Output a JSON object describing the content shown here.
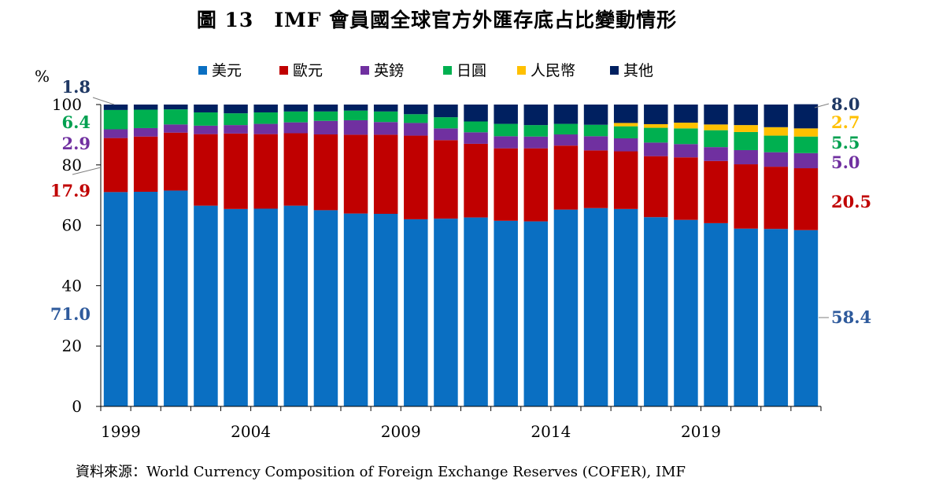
{
  "title": "圖 13　IMF 會員國全球官方外匯存底占比變動情形",
  "source": "資料來源：World Currency Composition of Foreign Exchange Reserves (COFER), IMF",
  "chart_data": {
    "type": "bar",
    "stacked": true,
    "title": "圖 13　IMF 會員國全球官方外匯存底占比變動情形",
    "ylabel": "%",
    "xlabel": "",
    "ylim": [
      0,
      100
    ],
    "yticks": [
      0,
      20,
      40,
      60,
      80,
      100
    ],
    "categories": [
      "1999",
      "2000",
      "2001",
      "2002",
      "2003",
      "2004",
      "2005",
      "2006",
      "2007",
      "2008",
      "2009",
      "2010",
      "2011",
      "2012",
      "2013",
      "2014",
      "2015",
      "2016",
      "2017",
      "2018",
      "2019",
      "2020",
      "2021",
      "2022"
    ],
    "xtick_labels": [
      "1999",
      "2004",
      "2009",
      "2014",
      "2019"
    ],
    "legend_position": "top",
    "series": [
      {
        "name": "美元",
        "color": "#0a6fc2",
        "values": [
          71.0,
          71.1,
          71.5,
          66.5,
          65.4,
          65.5,
          66.5,
          65.0,
          63.9,
          63.8,
          62.0,
          62.2,
          62.6,
          61.5,
          61.3,
          65.2,
          65.7,
          65.4,
          62.7,
          61.8,
          60.7,
          58.9,
          58.8,
          58.4
        ]
      },
      {
        "name": "歐元",
        "color": "#c00000",
        "values": [
          17.9,
          18.3,
          19.2,
          23.7,
          25.0,
          24.7,
          24.0,
          25.1,
          26.1,
          26.2,
          27.7,
          26.0,
          24.4,
          24.0,
          24.2,
          21.2,
          19.1,
          19.1,
          20.2,
          20.7,
          20.6,
          21.3,
          20.6,
          20.5
        ]
      },
      {
        "name": "英鎊",
        "color": "#7030a0",
        "values": [
          2.9,
          2.8,
          2.7,
          2.8,
          2.8,
          3.4,
          3.6,
          4.5,
          4.8,
          4.2,
          4.2,
          3.9,
          3.8,
          4.0,
          3.9,
          3.7,
          4.7,
          4.3,
          4.5,
          4.4,
          4.6,
          4.7,
          4.8,
          5.0
        ]
      },
      {
        "name": "日圓",
        "color": "#00b050",
        "values": [
          6.4,
          6.1,
          5.0,
          4.4,
          3.9,
          3.8,
          3.6,
          3.1,
          3.2,
          3.5,
          2.9,
          3.7,
          3.6,
          4.1,
          3.8,
          3.5,
          3.8,
          4.0,
          4.9,
          5.2,
          5.6,
          6.0,
          5.5,
          5.5
        ]
      },
      {
        "name": "人民幣",
        "color": "#ffc000",
        "values": [
          0,
          0,
          0,
          0,
          0,
          0,
          0,
          0,
          0,
          0,
          0,
          0,
          0,
          0,
          0,
          0,
          0,
          1.1,
          1.2,
          1.9,
          1.9,
          2.3,
          2.8,
          2.7
        ]
      },
      {
        "name": "其他",
        "color": "#002060",
        "values": [
          1.8,
          1.7,
          1.6,
          2.6,
          2.9,
          2.6,
          2.3,
          2.3,
          2.0,
          2.3,
          3.2,
          4.2,
          5.6,
          6.4,
          6.8,
          6.4,
          6.7,
          6.1,
          6.5,
          6.0,
          6.6,
          6.8,
          7.5,
          8.0
        ]
      }
    ],
    "annotations": {
      "left": [
        {
          "series": "其他",
          "text": "1.8",
          "color": "#1f3864"
        },
        {
          "series": "日圓",
          "text": "6.4",
          "color": "#00a050"
        },
        {
          "series": "英鎊",
          "text": "2.9",
          "color": "#7030a0"
        },
        {
          "series": "歐元",
          "text": "17.9",
          "color": "#c00000"
        },
        {
          "series": "美元",
          "text": "71.0",
          "color": "#2e5a9c"
        }
      ],
      "right": [
        {
          "series": "其他",
          "text": "8.0",
          "color": "#1f3864"
        },
        {
          "series": "人民幣",
          "text": "2.7",
          "color": "#ffc000"
        },
        {
          "series": "日圓",
          "text": "5.5",
          "color": "#00a050"
        },
        {
          "series": "英鎊",
          "text": "5.0",
          "color": "#7030a0"
        },
        {
          "series": "歐元",
          "text": "20.5",
          "color": "#c00000"
        },
        {
          "series": "美元",
          "text": "58.4",
          "color": "#2e5a9c"
        }
      ]
    }
  }
}
